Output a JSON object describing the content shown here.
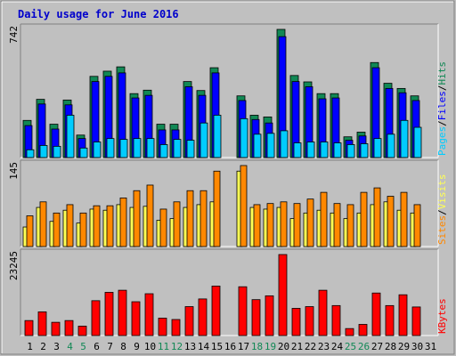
{
  "title": "Daily usage for June 2016",
  "colors": {
    "background": "#C0C0C0",
    "title": "#0000CC",
    "pages": "#00CCFF",
    "files": "#0000FF",
    "hits": "#118855",
    "visits": "#FFFF55",
    "sites": "#FF8800",
    "kbytes": "#FF0000",
    "weekend_label": "#118855",
    "frame_dark": "#808080",
    "frame_light": "#FFFFFF"
  },
  "chart_data": [
    {
      "type": "bar",
      "panel": "hits_files_pages",
      "ymax_label": "742",
      "ylim": [
        0,
        742
      ],
      "ylabel": [
        "Pages",
        "/",
        "Files",
        "/",
        "Hits"
      ],
      "categories": [
        "1",
        "2",
        "3",
        "4",
        "5",
        "6",
        "7",
        "8",
        "9",
        "10",
        "11",
        "12",
        "13",
        "14",
        "15",
        "16",
        "17",
        "18",
        "19",
        "20",
        "21",
        "22",
        "23",
        "24",
        "25",
        "26",
        "27",
        "28",
        "29",
        "30",
        "31"
      ],
      "series": [
        {
          "name": "Hits",
          "values": [
            215,
            337,
            193,
            333,
            130,
            470,
            500,
            525,
            370,
            390,
            193,
            193,
            440,
            388,
            520,
            0,
            357,
            245,
            235,
            742,
            475,
            438,
            370,
            370,
            120,
            147,
            550,
            430,
            400,
            357,
            0
          ]
        },
        {
          "name": "Files",
          "values": [
            185,
            310,
            165,
            305,
            110,
            440,
            470,
            490,
            345,
            360,
            160,
            160,
            410,
            360,
            490,
            0,
            330,
            220,
            200,
            700,
            440,
            410,
            340,
            345,
            100,
            125,
            520,
            400,
            375,
            330,
            0
          ]
        },
        {
          "name": "Pages",
          "values": [
            45,
            70,
            65,
            245,
            55,
            90,
            110,
            105,
            110,
            110,
            75,
            105,
            100,
            200,
            245,
            0,
            225,
            135,
            140,
            155,
            85,
            90,
            90,
            85,
            75,
            80,
            110,
            135,
            215,
            175,
            0
          ]
        }
      ]
    },
    {
      "type": "bar",
      "panel": "visits_sites",
      "ymax_label": "145",
      "ylim": [
        0,
        145
      ],
      "ylabel": [
        "Sites",
        "/",
        "Visits"
      ],
      "categories": [
        "1",
        "2",
        "3",
        "4",
        "5",
        "6",
        "7",
        "8",
        "9",
        "10",
        "11",
        "12",
        "13",
        "14",
        "15",
        "16",
        "17",
        "18",
        "19",
        "20",
        "21",
        "22",
        "23",
        "24",
        "25",
        "26",
        "27",
        "28",
        "29",
        "30",
        "31"
      ],
      "series": [
        {
          "name": "Visits",
          "values": [
            35,
            70,
            45,
            65,
            42,
            67,
            65,
            75,
            70,
            72,
            47,
            50,
            70,
            75,
            80,
            0,
            135,
            70,
            67,
            70,
            50,
            60,
            65,
            60,
            50,
            60,
            75,
            80,
            65,
            60,
            0
          ]
        },
        {
          "name": "Sites",
          "values": [
            55,
            80,
            60,
            75,
            60,
            73,
            73,
            87,
            100,
            110,
            67,
            80,
            100,
            100,
            135,
            0,
            145,
            75,
            77,
            80,
            77,
            85,
            97,
            77,
            75,
            97,
            105,
            90,
            97,
            75,
            0
          ]
        }
      ]
    },
    {
      "type": "bar",
      "panel": "kbytes",
      "ymax_label": "23245",
      "ylim": [
        0,
        23245
      ],
      "ylabel": [
        "KBytes"
      ],
      "categories": [
        "1",
        "2",
        "3",
        "4",
        "5",
        "6",
        "7",
        "8",
        "9",
        "10",
        "11",
        "12",
        "13",
        "14",
        "15",
        "16",
        "17",
        "18",
        "19",
        "20",
        "21",
        "22",
        "23",
        "24",
        "25",
        "26",
        "27",
        "28",
        "29",
        "30",
        "31"
      ],
      "series": [
        {
          "name": "KBytes",
          "values": [
            4300,
            6800,
            3800,
            4300,
            2700,
            10000,
            12400,
            13000,
            9700,
            12000,
            5000,
            4600,
            8300,
            10500,
            14200,
            0,
            14000,
            10300,
            11400,
            23245,
            7800,
            8300,
            13000,
            8600,
            2000,
            3200,
            12200,
            8600,
            11700,
            8200,
            0
          ]
        }
      ]
    }
  ],
  "weekend_days": [
    "4",
    "5",
    "11",
    "12",
    "18",
    "19",
    "25",
    "26"
  ]
}
